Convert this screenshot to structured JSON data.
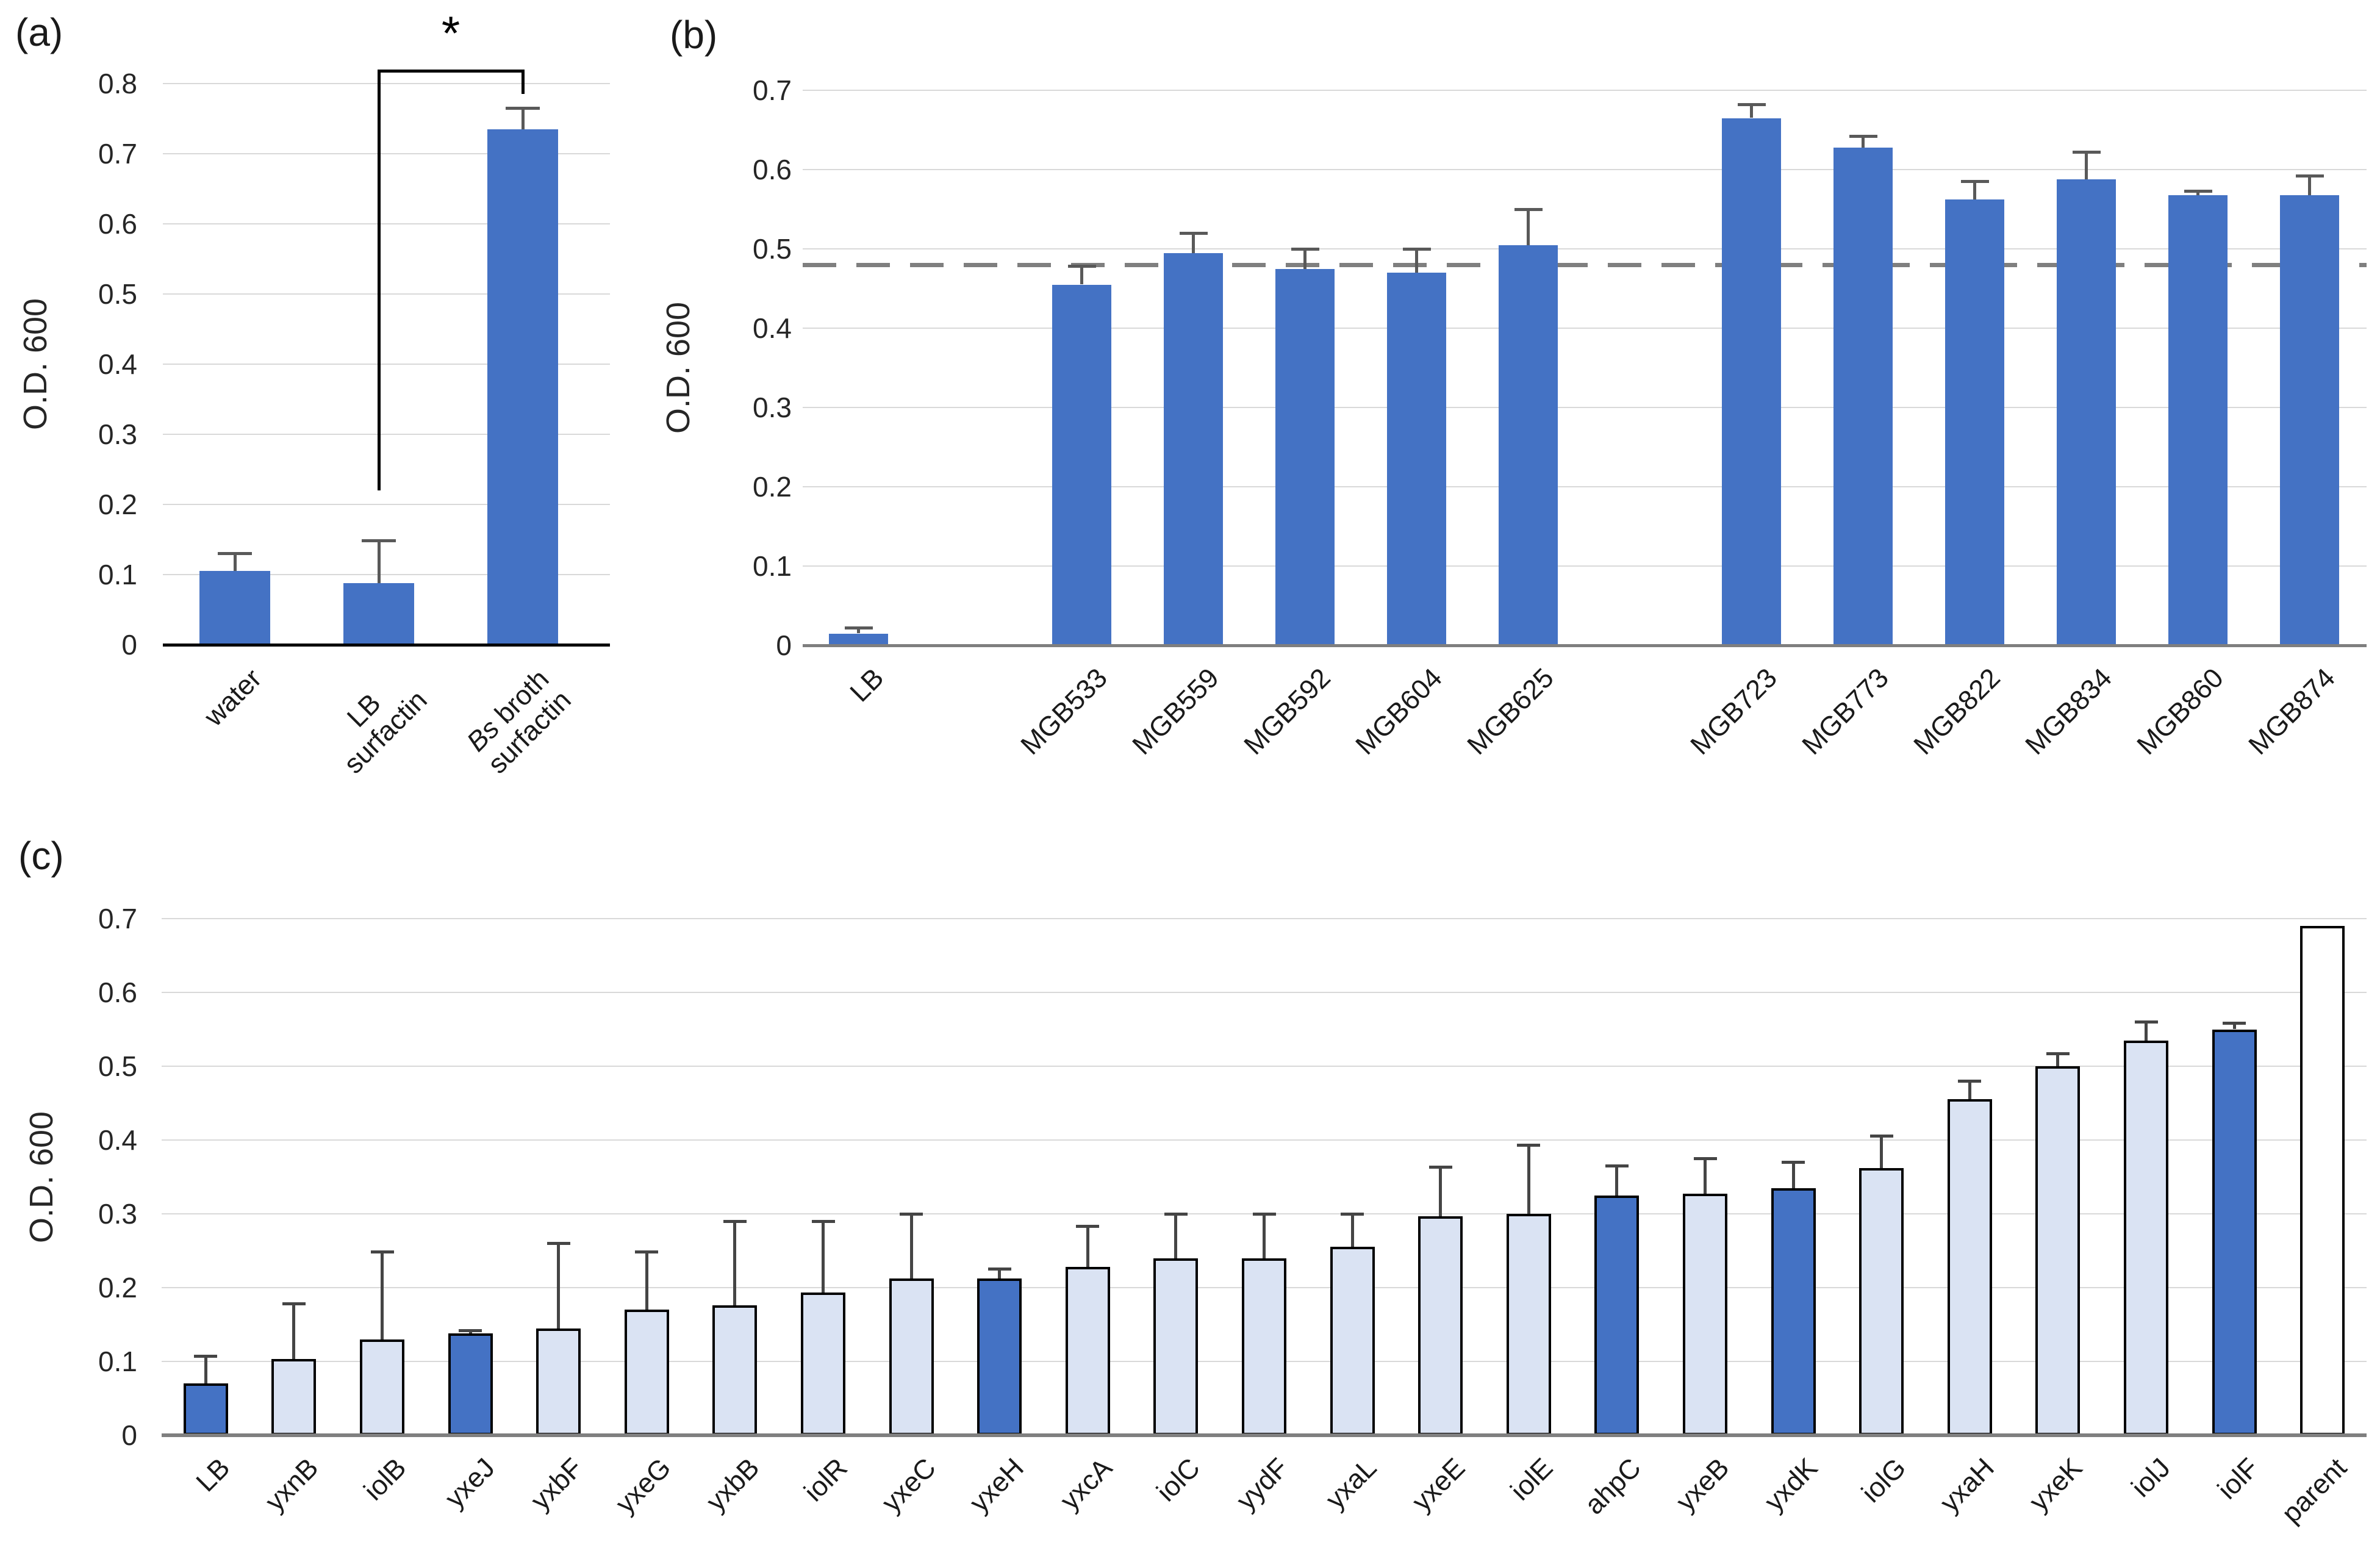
{
  "palette": {
    "bar_blue": "#4472C4",
    "bar_light": "#DAE3F3",
    "bar_white": "#FFFFFF",
    "bar_border": "#000000",
    "gridline": "#D9D9D9",
    "axis_gray": "#7F7F7F",
    "axis_black": "#000000",
    "error_bar": "#595959",
    "error_bar_dark": "#454545",
    "ref_dash": "#7F7F7F"
  },
  "chart_data": [
    {
      "id": "a",
      "panel_label": "(a)",
      "type": "bar",
      "ylabel": "O.D. 600",
      "ylim": [
        0,
        0.8
      ],
      "ystep": 0.1,
      "grid": true,
      "bars": [
        {
          "label_lines": [
            "water"
          ],
          "value": 0.105,
          "err_top": 0.13,
          "fill": "blue"
        },
        {
          "label_lines": [
            "LB",
            "surfactin"
          ],
          "value": 0.088,
          "err_top": 0.148,
          "fill": "blue"
        },
        {
          "label_lines": [
            "Bs broth",
            "surfactin"
          ],
          "italic_word": "Bs",
          "value": 0.735,
          "err_top": 0.765,
          "fill": "blue"
        }
      ],
      "significance": {
        "star": "*",
        "from_bar": 1,
        "to_bar": 2,
        "start_value": 0.22,
        "top_value": 0.82,
        "drop_value": 0.785
      }
    },
    {
      "id": "b",
      "panel_label": "(b)",
      "type": "bar",
      "ylabel": "O.D. 600",
      "ylim": [
        0,
        0.7
      ],
      "ystep": 0.1,
      "grid": true,
      "ref_line": 0.48,
      "slots": 14,
      "bars": [
        {
          "label_lines": [
            "LB"
          ],
          "slot": 0,
          "value": 0.015,
          "err_top": 0.022,
          "fill": "blue"
        },
        {
          "label_lines": [
            "MGB533"
          ],
          "slot": 2,
          "value": 0.455,
          "err_top": 0.478,
          "fill": "blue"
        },
        {
          "label_lines": [
            "MGB559"
          ],
          "slot": 3,
          "value": 0.495,
          "err_top": 0.52,
          "fill": "blue"
        },
        {
          "label_lines": [
            "MGB592"
          ],
          "slot": 4,
          "value": 0.475,
          "err_top": 0.5,
          "fill": "blue"
        },
        {
          "label_lines": [
            "MGB604"
          ],
          "slot": 5,
          "value": 0.47,
          "err_top": 0.5,
          "fill": "blue"
        },
        {
          "label_lines": [
            "MGB625"
          ],
          "slot": 6,
          "value": 0.505,
          "err_top": 0.55,
          "fill": "blue"
        },
        {
          "label_lines": [
            "MGB723"
          ],
          "slot": 8,
          "value": 0.665,
          "err_top": 0.682,
          "fill": "blue"
        },
        {
          "label_lines": [
            "MGB773"
          ],
          "slot": 9,
          "value": 0.628,
          "err_top": 0.642,
          "fill": "blue"
        },
        {
          "label_lines": [
            "MGB822"
          ],
          "slot": 10,
          "value": 0.562,
          "err_top": 0.585,
          "fill": "blue"
        },
        {
          "label_lines": [
            "MGB834"
          ],
          "slot": 11,
          "value": 0.588,
          "err_top": 0.622,
          "fill": "blue"
        },
        {
          "label_lines": [
            "MGB860"
          ],
          "slot": 12,
          "value": 0.568,
          "err_top": 0.573,
          "fill": "blue"
        },
        {
          "label_lines": [
            "MGB874"
          ],
          "slot": 13,
          "value": 0.568,
          "err_top": 0.592,
          "fill": "blue"
        }
      ]
    },
    {
      "id": "c",
      "panel_label": "(c)",
      "type": "bar",
      "ylabel": "O.D. 600",
      "ylim": [
        0,
        0.7
      ],
      "ystep": 0.1,
      "grid": true,
      "bordered_bars": true,
      "bars": [
        {
          "label_lines": [
            "LB"
          ],
          "value": 0.07,
          "err_top": 0.107,
          "fill": "blue"
        },
        {
          "label_lines": [
            "yxnB"
          ],
          "value": 0.103,
          "err_top": 0.178,
          "fill": "light"
        },
        {
          "label_lines": [
            "iolB"
          ],
          "value": 0.13,
          "err_top": 0.248,
          "fill": "light"
        },
        {
          "label_lines": [
            "yxeJ"
          ],
          "value": 0.138,
          "err_top": 0.142,
          "fill": "blue"
        },
        {
          "label_lines": [
            "yxbF"
          ],
          "value": 0.145,
          "err_top": 0.26,
          "fill": "light"
        },
        {
          "label_lines": [
            "yxeG"
          ],
          "value": 0.17,
          "err_top": 0.248,
          "fill": "light"
        },
        {
          "label_lines": [
            "yxbB"
          ],
          "value": 0.176,
          "err_top": 0.29,
          "fill": "light"
        },
        {
          "label_lines": [
            "iolR"
          ],
          "value": 0.193,
          "err_top": 0.29,
          "fill": "light"
        },
        {
          "label_lines": [
            "yxeC"
          ],
          "value": 0.212,
          "err_top": 0.3,
          "fill": "light"
        },
        {
          "label_lines": [
            "yxeH"
          ],
          "value": 0.212,
          "err_top": 0.225,
          "fill": "blue"
        },
        {
          "label_lines": [
            "yxcA"
          ],
          "value": 0.228,
          "err_top": 0.283,
          "fill": "light"
        },
        {
          "label_lines": [
            "iolC"
          ],
          "value": 0.24,
          "err_top": 0.3,
          "fill": "light"
        },
        {
          "label_lines": [
            "yydF"
          ],
          "value": 0.24,
          "err_top": 0.3,
          "fill": "light"
        },
        {
          "label_lines": [
            "yxaL"
          ],
          "value": 0.255,
          "err_top": 0.3,
          "fill": "light"
        },
        {
          "label_lines": [
            "yxeE"
          ],
          "value": 0.297,
          "err_top": 0.363,
          "fill": "light"
        },
        {
          "label_lines": [
            "iolE"
          ],
          "value": 0.3,
          "err_top": 0.393,
          "fill": "light"
        },
        {
          "label_lines": [
            "ahpC"
          ],
          "value": 0.325,
          "err_top": 0.365,
          "fill": "blue"
        },
        {
          "label_lines": [
            "yxeB"
          ],
          "value": 0.327,
          "err_top": 0.375,
          "fill": "light"
        },
        {
          "label_lines": [
            "yxdK"
          ],
          "value": 0.335,
          "err_top": 0.37,
          "fill": "blue"
        },
        {
          "label_lines": [
            "iolG"
          ],
          "value": 0.362,
          "err_top": 0.405,
          "fill": "light"
        },
        {
          "label_lines": [
            "yxaH"
          ],
          "value": 0.455,
          "err_top": 0.48,
          "fill": "light"
        },
        {
          "label_lines": [
            "yxeK"
          ],
          "value": 0.5,
          "err_top": 0.517,
          "fill": "light"
        },
        {
          "label_lines": [
            "iolJ"
          ],
          "value": 0.535,
          "err_top": 0.56,
          "fill": "light"
        },
        {
          "label_lines": [
            "iolF"
          ],
          "value": 0.55,
          "err_top": 0.558,
          "fill": "blue"
        },
        {
          "label_lines": [
            "parent"
          ],
          "value": 0.69,
          "err_top": null,
          "fill": "white"
        }
      ]
    }
  ]
}
